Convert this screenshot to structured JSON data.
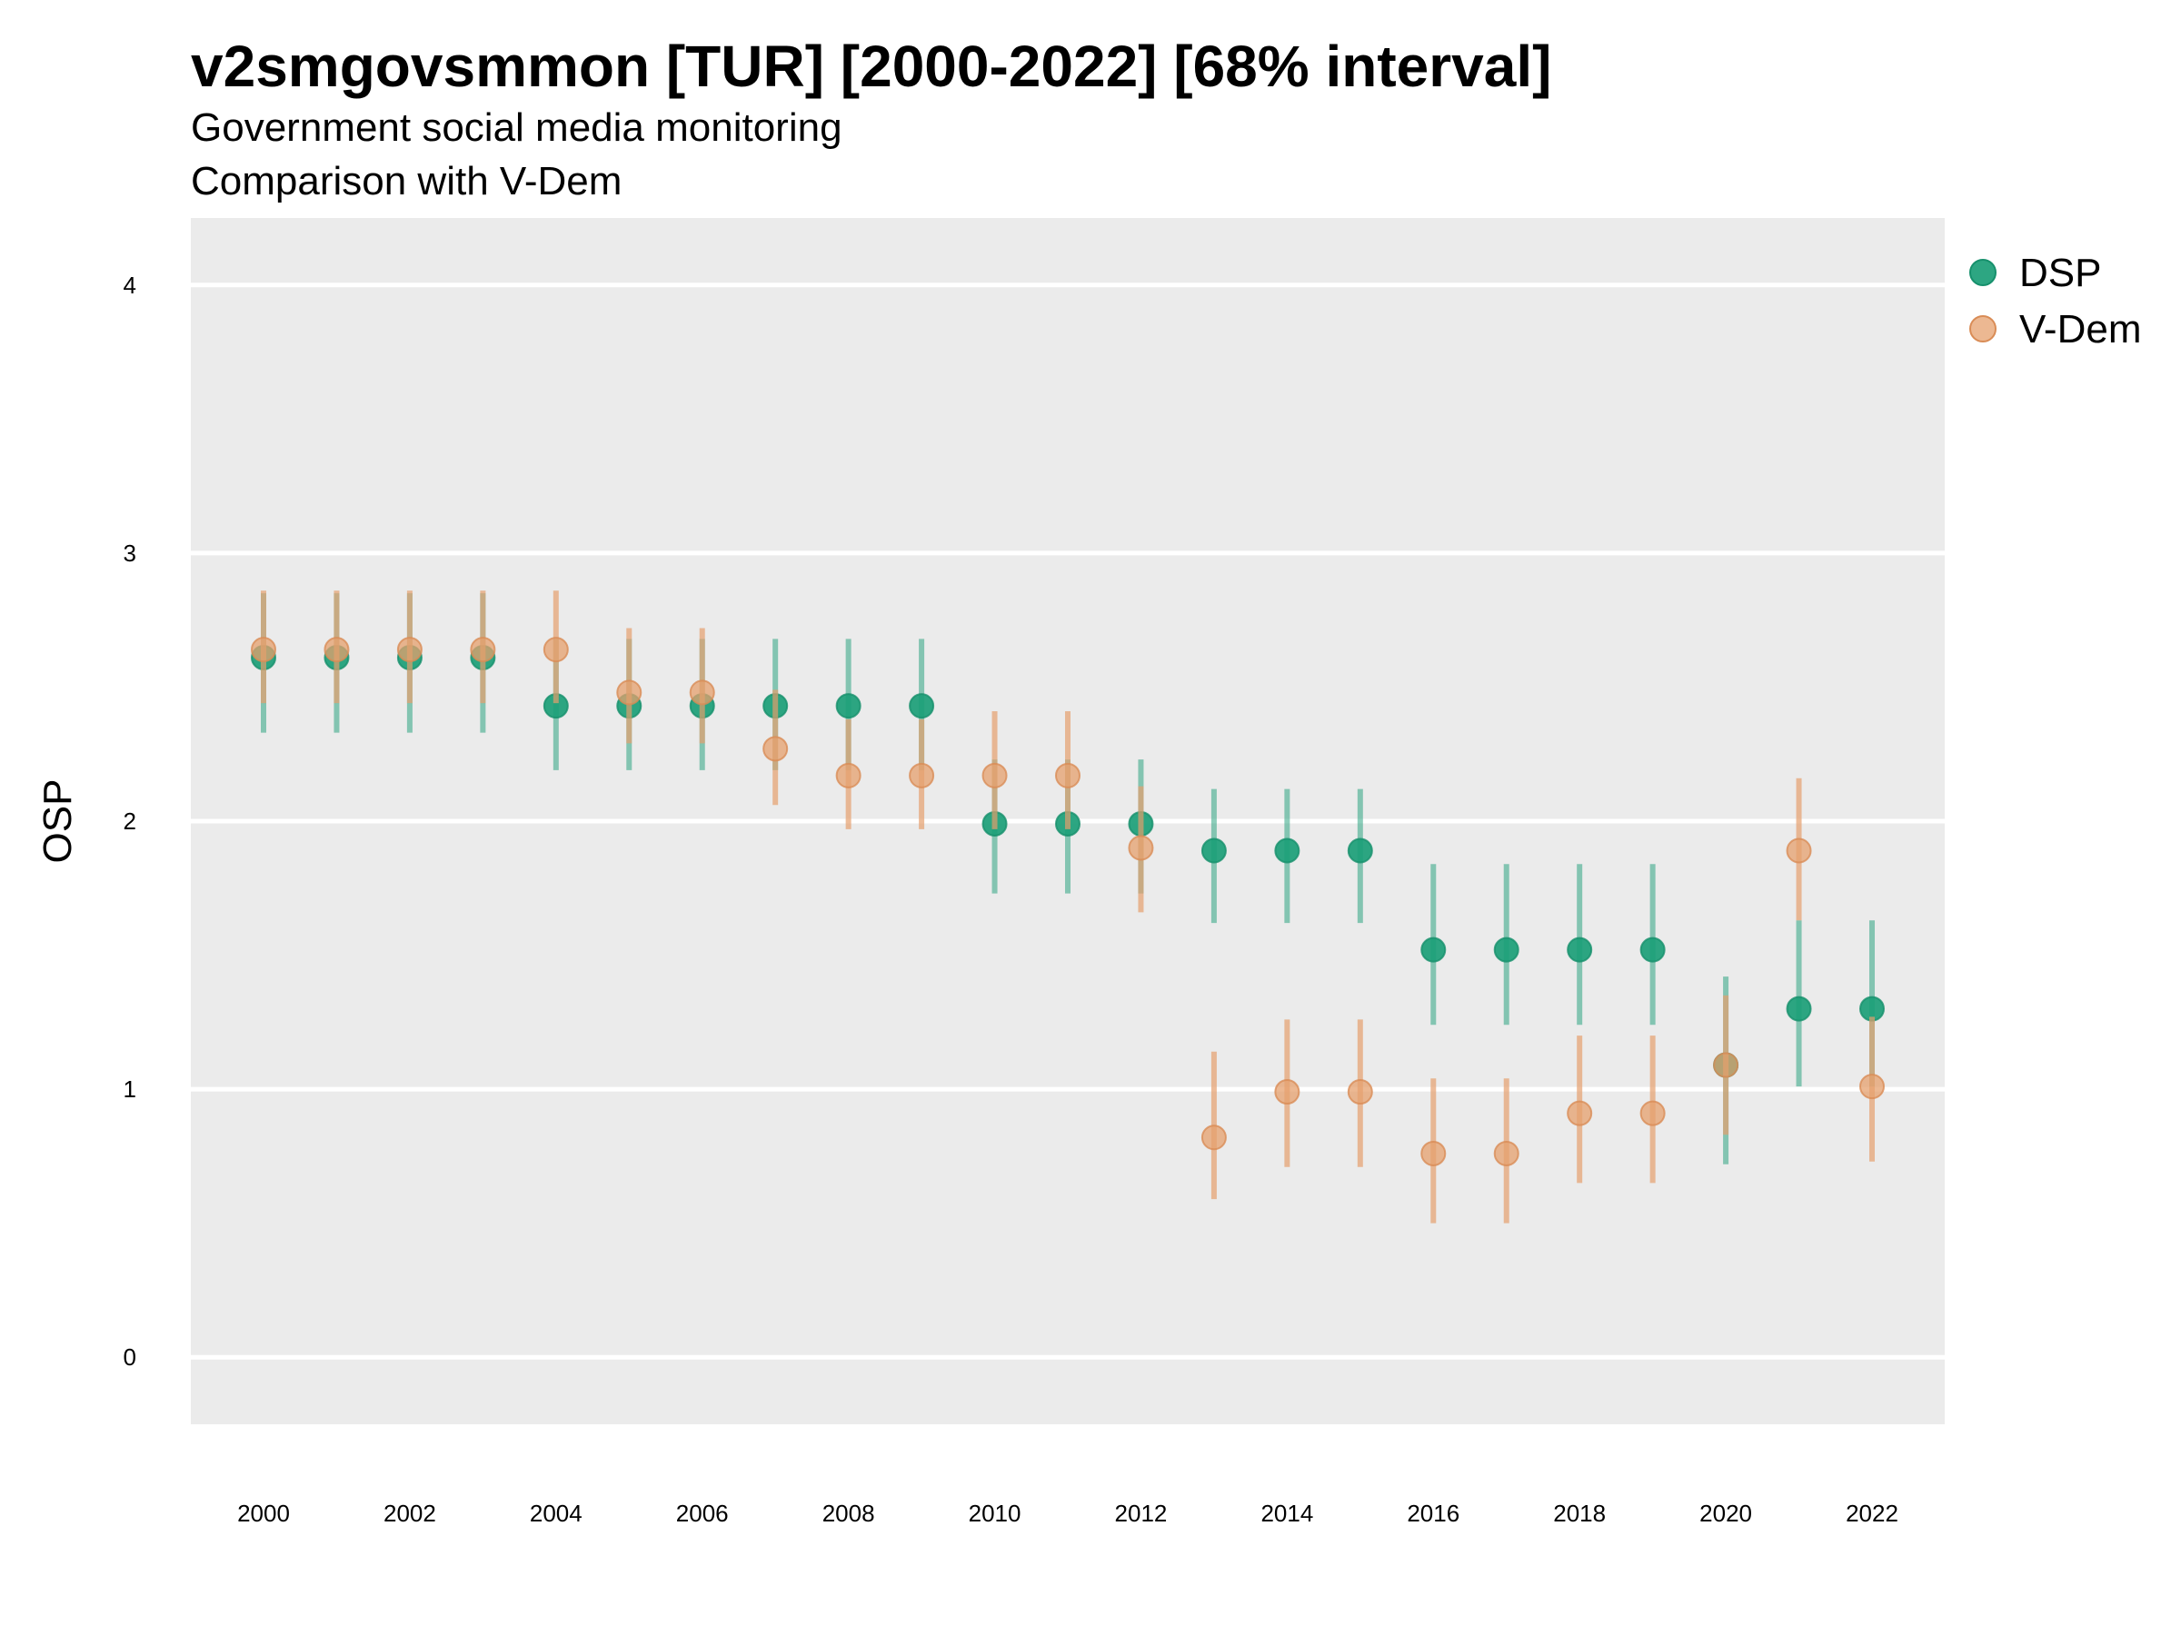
{
  "chart_data": {
    "type": "scatter",
    "title": "v2smgovsmmon [TUR] [2000-2022] [68% interval]",
    "subtitle": "Government social media monitoring",
    "caption_line": "Comparison with V-Dem",
    "ylabel": "OSP",
    "xlabel": "",
    "ylim": [
      -0.25,
      4.25
    ],
    "y_ticks": [
      0,
      1,
      2,
      3,
      4
    ],
    "x_ticks": [
      "2000",
      "2002",
      "2004",
      "2006",
      "2008",
      "2010",
      "2012",
      "2014",
      "2016",
      "2018",
      "2020",
      "2022"
    ],
    "x": [
      2000,
      2001,
      2002,
      2003,
      2004,
      2005,
      2006,
      2007,
      2008,
      2009,
      2010,
      2011,
      2012,
      2013,
      2014,
      2015,
      2016,
      2017,
      2018,
      2019,
      2020,
      2021,
      2022
    ],
    "grid": true,
    "legend_position": "right",
    "series": [
      {
        "name": "DSP",
        "color": "#1b9e77",
        "values": [
          2.61,
          2.61,
          2.61,
          2.61,
          2.43,
          2.43,
          2.43,
          2.43,
          2.43,
          2.43,
          1.99,
          1.99,
          1.99,
          1.89,
          1.89,
          1.89,
          1.52,
          1.52,
          1.52,
          1.52,
          1.09,
          1.3,
          1.3
        ],
        "lower": [
          2.33,
          2.33,
          2.33,
          2.33,
          2.19,
          2.19,
          2.19,
          2.19,
          2.19,
          2.19,
          1.73,
          1.73,
          1.73,
          1.62,
          1.62,
          1.62,
          1.24,
          1.24,
          1.24,
          1.24,
          0.72,
          1.01,
          1.01
        ],
        "upper": [
          2.85,
          2.85,
          2.85,
          2.85,
          2.68,
          2.68,
          2.68,
          2.68,
          2.68,
          2.68,
          2.23,
          2.23,
          2.23,
          2.12,
          2.12,
          2.12,
          1.84,
          1.84,
          1.84,
          1.84,
          1.42,
          1.63,
          1.63
        ]
      },
      {
        "name": "V-Dem",
        "color": "#e6a06e",
        "values": [
          2.64,
          2.64,
          2.64,
          2.64,
          2.64,
          2.48,
          2.48,
          2.27,
          2.17,
          2.17,
          2.17,
          2.17,
          1.9,
          0.82,
          0.99,
          0.99,
          0.76,
          0.76,
          0.91,
          0.91,
          1.09,
          1.89,
          1.01
        ],
        "lower": [
          2.44,
          2.44,
          2.44,
          2.44,
          2.44,
          2.29,
          2.29,
          2.06,
          1.97,
          1.97,
          1.97,
          1.97,
          1.66,
          0.59,
          0.71,
          0.71,
          0.5,
          0.5,
          0.65,
          0.65,
          0.83,
          1.63,
          0.73
        ],
        "upper": [
          2.86,
          2.86,
          2.86,
          2.86,
          2.86,
          2.72,
          2.72,
          2.49,
          2.38,
          2.38,
          2.41,
          2.41,
          2.13,
          1.14,
          1.26,
          1.26,
          1.04,
          1.04,
          1.2,
          1.2,
          1.35,
          2.16,
          1.27
        ]
      }
    ]
  }
}
